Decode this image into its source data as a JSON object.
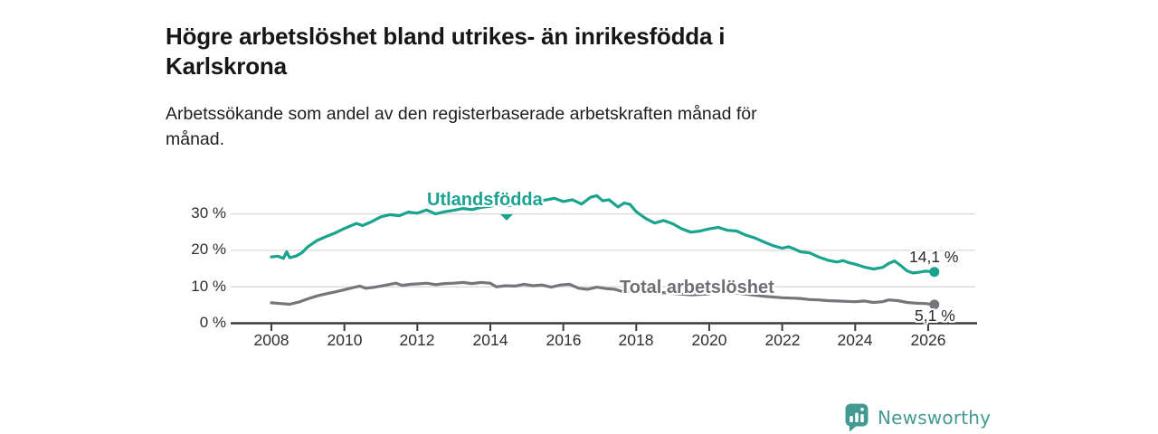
{
  "header": {
    "title_lines": [
      "Högre arbetslöshet bland utrikes- än inrikesfödda i",
      "Karlskrona"
    ],
    "subtitle_lines": [
      "Arbetssökande som andel av den registerbaserade arbetskraften månad för",
      "månad."
    ]
  },
  "chart_data": {
    "type": "line",
    "title": "Högre arbetslöshet bland utrikes- än inrikesfödda i Karlskrona",
    "subtitle": "Arbetssökande som andel av den registerbaserade arbetskraften månad för månad.",
    "grid": "horizontal",
    "legend": "inline-labels",
    "style": {
      "grid_color": "#D8D8D8",
      "axis_color": "#3B3B3B",
      "background": "#FFFFFF"
    },
    "x_axis": {
      "tick_labels": [
        "2008",
        "2010",
        "2012",
        "2014",
        "2016",
        "2018",
        "2020",
        "2022",
        "2024",
        "2026"
      ],
      "tick_values": [
        2008,
        2010,
        2012,
        2014,
        2016,
        2018,
        2020,
        2022,
        2024,
        2026
      ],
      "range": [
        2006.9,
        2027.3
      ]
    },
    "y_axis": {
      "unit": "%",
      "tick_labels": [
        "0 %",
        "10 %",
        "20 %",
        "30 %"
      ],
      "tick_values": [
        0,
        10,
        20,
        30
      ],
      "range": [
        0,
        37
      ]
    },
    "series": [
      {
        "name": "Utlandsfödda",
        "color": "#1AA38E",
        "end_label": "14,1 %",
        "end_value": 14.1,
        "points": [
          [
            2008.0,
            18.2
          ],
          [
            2008.17,
            18.4
          ],
          [
            2008.33,
            17.8
          ],
          [
            2008.42,
            19.6
          ],
          [
            2008.5,
            18.0
          ],
          [
            2008.67,
            18.4
          ],
          [
            2008.83,
            19.3
          ],
          [
            2009.0,
            21.0
          ],
          [
            2009.25,
            22.7
          ],
          [
            2009.5,
            23.8
          ],
          [
            2009.75,
            24.8
          ],
          [
            2010.0,
            26.0
          ],
          [
            2010.33,
            27.4
          ],
          [
            2010.5,
            26.8
          ],
          [
            2010.75,
            27.9
          ],
          [
            2011.0,
            29.2
          ],
          [
            2011.25,
            29.8
          ],
          [
            2011.5,
            29.5
          ],
          [
            2011.75,
            30.5
          ],
          [
            2012.0,
            30.2
          ],
          [
            2012.25,
            31.1
          ],
          [
            2012.5,
            30.0
          ],
          [
            2012.75,
            30.6
          ],
          [
            2013.0,
            31.0
          ],
          [
            2013.25,
            31.5
          ],
          [
            2013.5,
            31.2
          ],
          [
            2013.75,
            31.8
          ],
          [
            2014.0,
            32.1
          ],
          [
            2014.25,
            32.5
          ],
          [
            2014.5,
            32.2
          ],
          [
            2014.75,
            32.8
          ],
          [
            2015.0,
            33.0
          ],
          [
            2015.25,
            33.5
          ],
          [
            2015.5,
            33.8
          ],
          [
            2015.75,
            34.3
          ],
          [
            2016.0,
            33.4
          ],
          [
            2016.25,
            33.9
          ],
          [
            2016.5,
            32.7
          ],
          [
            2016.75,
            34.6
          ],
          [
            2016.92,
            35.0
          ],
          [
            2017.08,
            33.6
          ],
          [
            2017.25,
            33.9
          ],
          [
            2017.5,
            31.9
          ],
          [
            2017.67,
            33.0
          ],
          [
            2017.83,
            32.6
          ],
          [
            2018.0,
            30.6
          ],
          [
            2018.25,
            28.8
          ],
          [
            2018.5,
            27.5
          ],
          [
            2018.75,
            28.2
          ],
          [
            2019.0,
            27.3
          ],
          [
            2019.25,
            25.9
          ],
          [
            2019.5,
            25.0
          ],
          [
            2019.75,
            25.3
          ],
          [
            2020.0,
            25.9
          ],
          [
            2020.25,
            26.3
          ],
          [
            2020.5,
            25.5
          ],
          [
            2020.75,
            25.3
          ],
          [
            2021.0,
            24.2
          ],
          [
            2021.25,
            23.4
          ],
          [
            2021.5,
            22.3
          ],
          [
            2021.75,
            21.3
          ],
          [
            2022.0,
            20.6
          ],
          [
            2022.17,
            21.0
          ],
          [
            2022.33,
            20.4
          ],
          [
            2022.5,
            19.6
          ],
          [
            2022.75,
            19.3
          ],
          [
            2023.0,
            18.2
          ],
          [
            2023.25,
            17.3
          ],
          [
            2023.5,
            16.8
          ],
          [
            2023.67,
            17.2
          ],
          [
            2023.83,
            16.6
          ],
          [
            2024.0,
            16.2
          ],
          [
            2024.25,
            15.4
          ],
          [
            2024.5,
            14.9
          ],
          [
            2024.75,
            15.3
          ],
          [
            2024.92,
            16.4
          ],
          [
            2025.08,
            17.1
          ],
          [
            2025.25,
            15.8
          ],
          [
            2025.42,
            14.4
          ],
          [
            2025.58,
            13.8
          ],
          [
            2025.75,
            14.0
          ],
          [
            2025.92,
            14.3
          ],
          [
            2026.17,
            14.1
          ]
        ]
      },
      {
        "name": "Total arbetslöshet",
        "color": "#75757A",
        "end_label": "5,1 %",
        "end_value": 5.1,
        "points": [
          [
            2008.0,
            5.6
          ],
          [
            2008.25,
            5.4
          ],
          [
            2008.5,
            5.2
          ],
          [
            2008.75,
            5.8
          ],
          [
            2009.0,
            6.7
          ],
          [
            2009.25,
            7.5
          ],
          [
            2009.5,
            8.1
          ],
          [
            2009.75,
            8.6
          ],
          [
            2010.0,
            9.2
          ],
          [
            2010.25,
            9.8
          ],
          [
            2010.42,
            10.2
          ],
          [
            2010.58,
            9.6
          ],
          [
            2010.83,
            9.9
          ],
          [
            2011.0,
            10.2
          ],
          [
            2011.25,
            10.7
          ],
          [
            2011.42,
            11.0
          ],
          [
            2011.58,
            10.4
          ],
          [
            2011.83,
            10.7
          ],
          [
            2012.0,
            10.8
          ],
          [
            2012.25,
            11.0
          ],
          [
            2012.5,
            10.6
          ],
          [
            2012.75,
            10.9
          ],
          [
            2013.0,
            11.0
          ],
          [
            2013.25,
            11.2
          ],
          [
            2013.5,
            10.9
          ],
          [
            2013.75,
            11.2
          ],
          [
            2014.0,
            11.0
          ],
          [
            2014.17,
            10.0
          ],
          [
            2014.42,
            10.3
          ],
          [
            2014.67,
            10.2
          ],
          [
            2014.92,
            10.7
          ],
          [
            2015.17,
            10.3
          ],
          [
            2015.42,
            10.5
          ],
          [
            2015.67,
            9.9
          ],
          [
            2015.92,
            10.5
          ],
          [
            2016.17,
            10.7
          ],
          [
            2016.42,
            9.6
          ],
          [
            2016.67,
            9.3
          ],
          [
            2016.92,
            9.9
          ],
          [
            2017.17,
            9.5
          ],
          [
            2017.42,
            9.3
          ],
          [
            2017.58,
            8.8
          ],
          [
            2017.83,
            8.7
          ],
          [
            2018.0,
            8.5
          ],
          [
            2018.25,
            8.3
          ],
          [
            2018.5,
            8.2
          ],
          [
            2018.75,
            8.4
          ],
          [
            2019.0,
            8.2
          ],
          [
            2019.25,
            8.0
          ],
          [
            2019.5,
            7.8
          ],
          [
            2019.75,
            7.9
          ],
          [
            2020.0,
            8.1
          ],
          [
            2020.25,
            8.8
          ],
          [
            2020.5,
            8.6
          ],
          [
            2020.75,
            8.3
          ],
          [
            2021.0,
            8.0
          ],
          [
            2021.25,
            7.7
          ],
          [
            2021.5,
            7.4
          ],
          [
            2021.75,
            7.2
          ],
          [
            2022.0,
            7.0
          ],
          [
            2022.25,
            6.9
          ],
          [
            2022.5,
            6.8
          ],
          [
            2022.75,
            6.5
          ],
          [
            2023.0,
            6.4
          ],
          [
            2023.25,
            6.2
          ],
          [
            2023.5,
            6.1
          ],
          [
            2023.75,
            6.0
          ],
          [
            2024.0,
            5.9
          ],
          [
            2024.25,
            6.1
          ],
          [
            2024.5,
            5.7
          ],
          [
            2024.75,
            5.9
          ],
          [
            2024.92,
            6.4
          ],
          [
            2025.17,
            6.2
          ],
          [
            2025.42,
            5.7
          ],
          [
            2025.67,
            5.5
          ],
          [
            2025.92,
            5.4
          ],
          [
            2026.17,
            5.1
          ]
        ]
      }
    ]
  },
  "footer": {
    "brand": "Newsworthy"
  }
}
